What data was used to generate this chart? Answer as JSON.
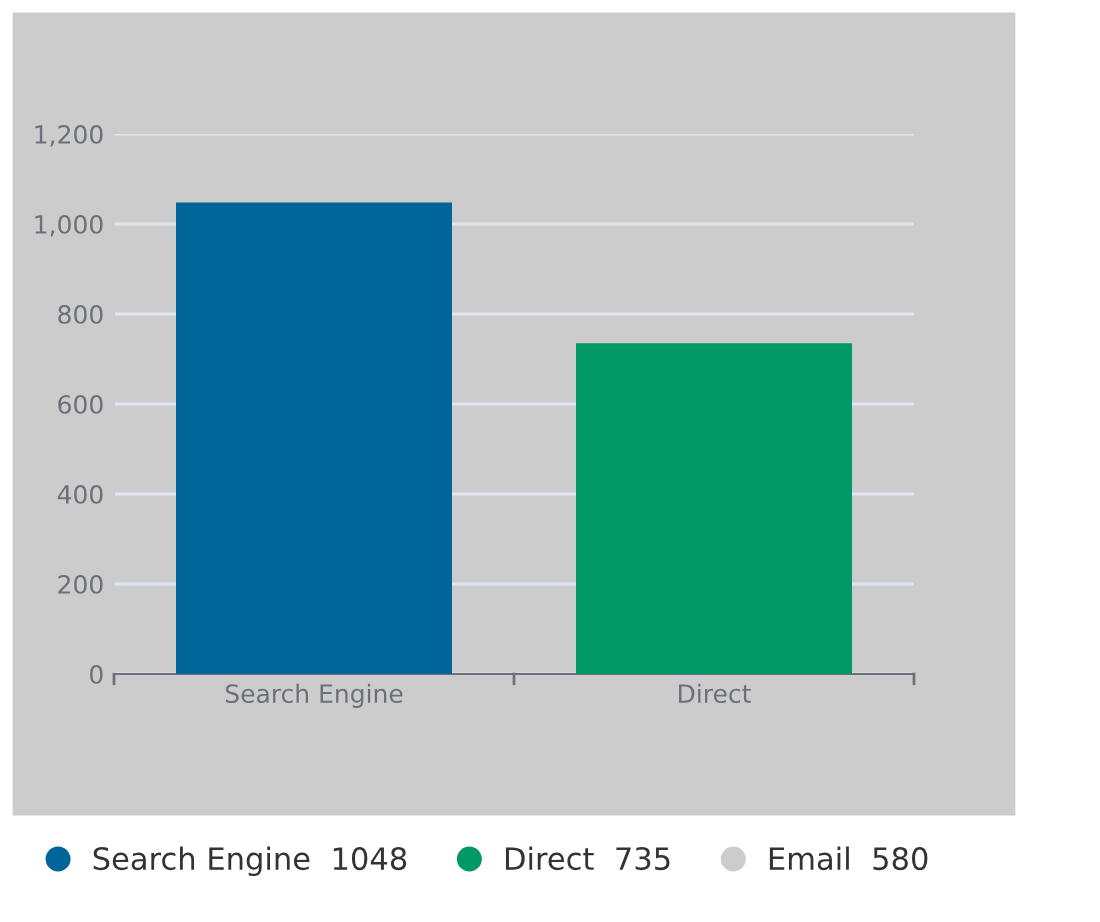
{
  "chart_data": {
    "type": "bar",
    "categories": [
      "Search Engine",
      "Direct"
    ],
    "series": [
      {
        "name": "Search Engine  1048",
        "color": "#006699",
        "values": [
          1048,
          null
        ]
      },
      {
        "name": "Direct  735",
        "color": "#009966",
        "values": [
          null,
          735
        ]
      },
      {
        "name": "Email  580",
        "color": "#cccccc",
        "values": [
          null,
          null
        ]
      }
    ],
    "ylim": [
      0,
      1200
    ],
    "yticks": [
      0,
      200,
      400,
      600,
      800,
      {
        "value": 1000,
        "label": "1,000"
      },
      {
        "value": 1200,
        "label": "1,200"
      }
    ],
    "grid": "y",
    "legend": "bottom"
  }
}
